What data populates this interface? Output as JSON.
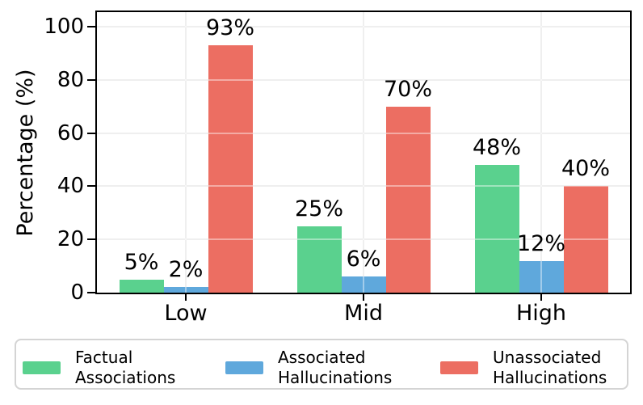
{
  "figure": {
    "ylabel": "Percentage (%)"
  },
  "chart_data": {
    "type": "bar",
    "categories": [
      "Low",
      "Mid",
      "High"
    ],
    "series": [
      {
        "name": "Factual Associations",
        "color": "#5ad18e",
        "values": [
          5,
          25,
          48
        ],
        "labels": [
          "5%",
          "25%",
          "48%"
        ]
      },
      {
        "name": "Associated Hallucinations",
        "color": "#5fa8dc",
        "values": [
          2,
          6,
          12
        ],
        "labels": [
          "2%",
          "6%",
          "12%"
        ]
      },
      {
        "name": "Unassociated Hallucinations",
        "color": "#ec6e62",
        "values": [
          93,
          70,
          40
        ],
        "labels": [
          "93%",
          "70%",
          "40%"
        ]
      }
    ],
    "title": "",
    "xlabel": "",
    "ylabel": "Percentage (%)",
    "ylim": [
      0,
      105.5
    ],
    "yticks": [
      0,
      20,
      40,
      60,
      80,
      100
    ],
    "grid": true,
    "grid_color": "#e4e4e4",
    "legend_position": "bottom"
  },
  "legend": {
    "items": [
      {
        "line1": "Factual",
        "line2": "Associations",
        "color": "#5ad18e"
      },
      {
        "line1": "Associated",
        "line2": "Hallucinations",
        "color": "#5fa8dc"
      },
      {
        "line1": "Unassociated",
        "line2": "Hallucinations",
        "color": "#ec6e62"
      }
    ]
  }
}
